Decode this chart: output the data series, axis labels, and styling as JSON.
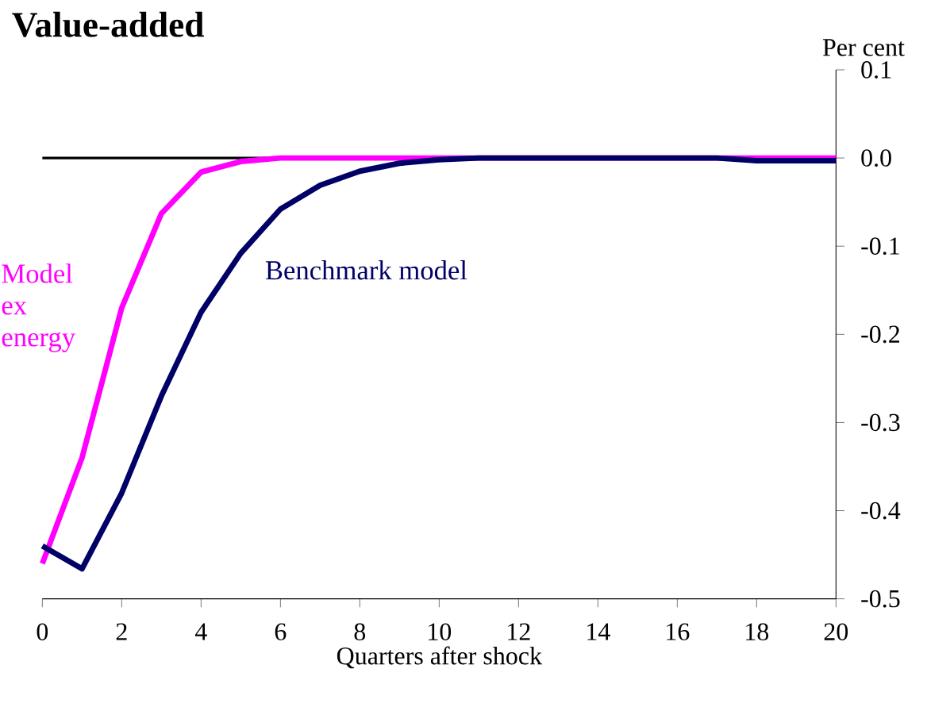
{
  "chart_data": {
    "type": "line",
    "title": "Value-added",
    "xlabel": "Quarters after shock",
    "ylabel": "Per cent",
    "x": [
      0,
      1,
      2,
      3,
      4,
      5,
      6,
      7,
      8,
      9,
      10,
      11,
      12,
      13,
      14,
      15,
      16,
      17,
      18,
      19,
      20
    ],
    "series": [
      {
        "name": "Model ex energy",
        "color": "#ff00ff",
        "values": [
          -0.46,
          -0.34,
          -0.17,
          -0.063,
          -0.016,
          -0.004,
          0,
          0,
          0,
          0,
          0,
          0,
          0,
          0,
          0,
          0,
          0,
          0,
          0,
          0,
          0
        ]
      },
      {
        "name": "Benchmark model",
        "color": "#000066",
        "values": [
          -0.44,
          -0.466,
          -0.38,
          -0.27,
          -0.175,
          -0.108,
          -0.058,
          -0.031,
          -0.015,
          -0.006,
          -0.002,
          0,
          0,
          0,
          0,
          0,
          0,
          0,
          -0.003,
          -0.003,
          -0.003
        ]
      }
    ],
    "xlim": [
      0,
      20
    ],
    "xticks": [
      0,
      2,
      4,
      6,
      8,
      10,
      12,
      14,
      16,
      18,
      20
    ],
    "ylim": [
      -0.5,
      0.1
    ],
    "yticks": [
      0.1,
      {
        "value": 0,
        "label": "0.0"
      },
      -0.1,
      -0.2,
      -0.3,
      -0.4,
      -0.5
    ],
    "ref_lines": [
      {
        "axis": "y",
        "value": 0,
        "color": "#000000"
      }
    ],
    "marker": "none",
    "line_style": "solid"
  }
}
